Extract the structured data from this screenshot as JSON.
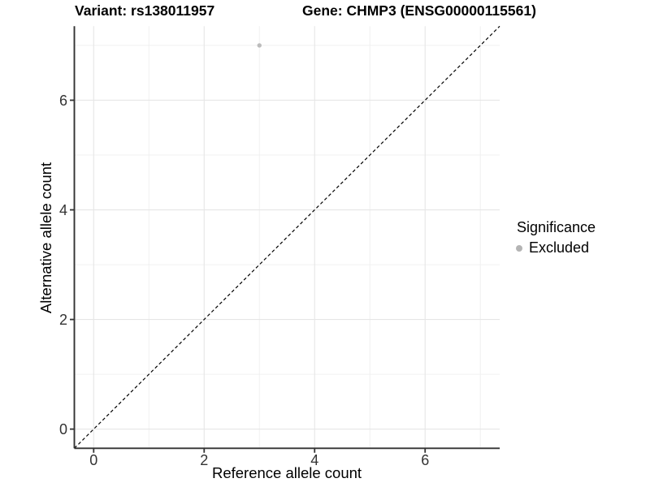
{
  "chart_data": {
    "type": "scatter",
    "titles": {
      "variant": "Variant: rs138011957",
      "gene": "Gene: CHMP3 (ENSG00000115561)"
    },
    "xlabel": "Reference allele count",
    "ylabel": "Alternative allele count",
    "xlim": [
      -0.35,
      7.35
    ],
    "ylim": [
      -0.35,
      7.35
    ],
    "x_ticks": [
      0,
      2,
      4,
      6
    ],
    "y_ticks": [
      0,
      2,
      4,
      6
    ],
    "x_minor_gridlines": [
      1,
      3,
      5,
      7
    ],
    "y_minor_gridlines": [
      1,
      3,
      5,
      7
    ],
    "grid": "major+minor",
    "reference_line": {
      "type": "identity",
      "equation": "y = x",
      "style": "dashed",
      "color": "#000000"
    },
    "series": [
      {
        "name": "Excluded",
        "color": "#bcbcbc",
        "points": [
          {
            "x": 3,
            "y": 7
          }
        ]
      }
    ],
    "legend": {
      "title": "Significance",
      "position": "right",
      "items": [
        {
          "label": "Excluded",
          "color": "#b4b4b4"
        }
      ]
    },
    "colors": {
      "grid_major": "#e6e6e6",
      "grid_minor": "#f0f0f0",
      "axis_line": "#333333",
      "tick_label": "#333333",
      "background": "#ffffff"
    }
  }
}
